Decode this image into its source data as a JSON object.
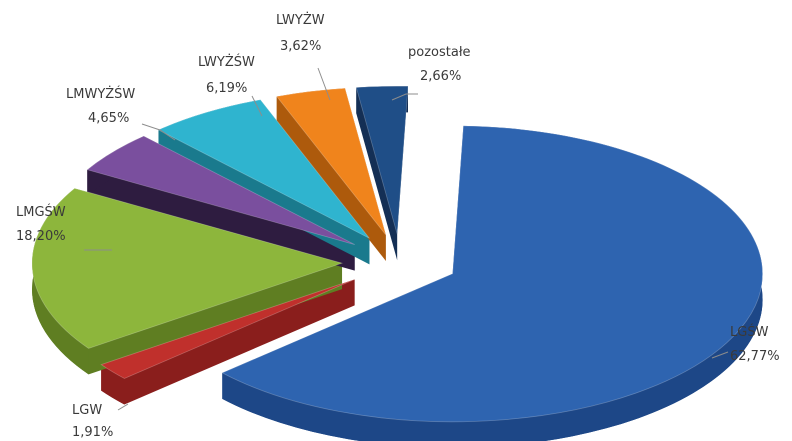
{
  "chart_data": {
    "type": "pie",
    "style": "3d-exploded",
    "title": "",
    "legend": "none",
    "slices": [
      {
        "label": "LGŚW",
        "value": 62.77,
        "value_label": "62,77%",
        "color": "#2e64b0",
        "side_color": "#1d4787"
      },
      {
        "label": "LGW",
        "value": 1.91,
        "value_label": "1,91%",
        "color": "#c0302c",
        "side_color": "#8a1e1c"
      },
      {
        "label": "LMGŚW",
        "value": 18.2,
        "value_label": "18,20%",
        "color": "#8db63c",
        "side_color": "#5f7e22"
      },
      {
        "label": "LMWYŻŚW",
        "value": 4.65,
        "value_label": "4,65%",
        "color": "#7a4f9e",
        "side_color": "#2e1c40"
      },
      {
        "label": "LWYŻŚW",
        "value": 6.19,
        "value_label": "6,19%",
        "color": "#2fb4cf",
        "side_color": "#1a7a8d"
      },
      {
        "label": "LWYŻW",
        "value": 3.62,
        "value_label": "3,62%",
        "color": "#f0841c",
        "side_color": "#ad5a0c"
      },
      {
        "label": "pozostałe",
        "value": 2.66,
        "value_label": "2,66%",
        "color": "#1f4e87",
        "side_color": "#142f55"
      }
    ]
  }
}
